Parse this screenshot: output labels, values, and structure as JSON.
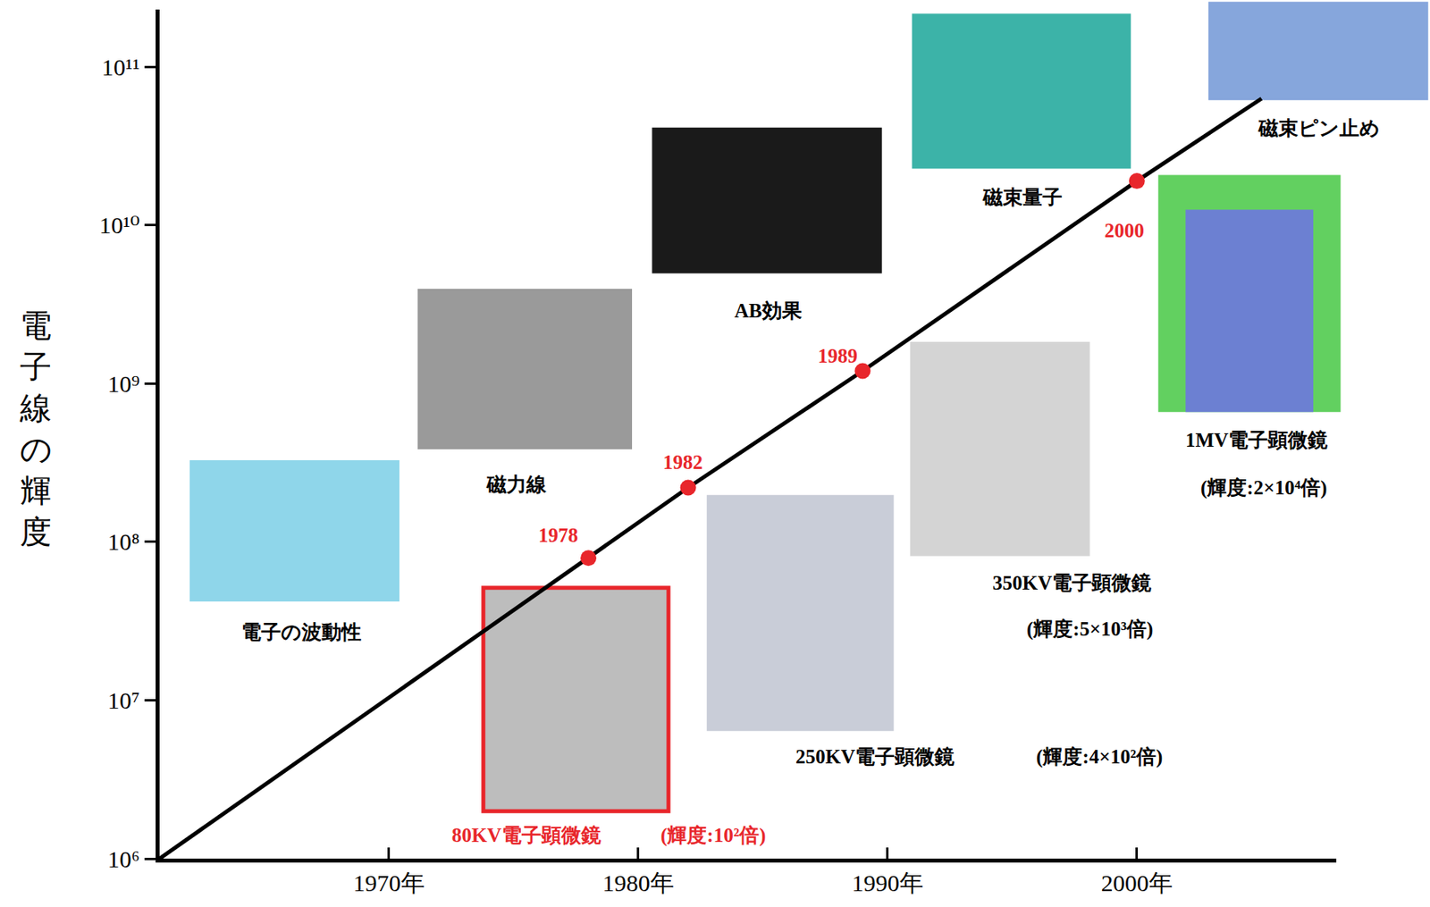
{
  "chart_data": {
    "type": "line",
    "log": "y",
    "grid": false,
    "y_label": "電子線の輝度",
    "xlim": [
      1960.8,
      2008
    ],
    "ylim": [
      1000000,
      230000000000
    ],
    "xticks": [
      {
        "value": 1970,
        "label": "1970年"
      },
      {
        "value": 1980,
        "label": "1980年"
      },
      {
        "value": 1990,
        "label": "1990年"
      },
      {
        "value": 2000,
        "label": "2000年"
      }
    ],
    "yticks": [
      {
        "value": 1000000,
        "label": "10⁶"
      },
      {
        "value": 10000000,
        "label": "10⁷"
      },
      {
        "value": 100000000,
        "label": "10⁸"
      },
      {
        "value": 1000000000,
        "label": "10⁹"
      },
      {
        "value": 10000000000,
        "label": "10¹⁰"
      },
      {
        "value": 100000000000,
        "label": "10¹¹"
      }
    ],
    "series": [
      {
        "type": "line",
        "color": "#000000",
        "line_style": "solid",
        "x": [
          1960.8,
          1978,
          1982,
          1989,
          2000,
          2005
        ],
        "values": [
          1000000,
          79000000,
          220000000,
          1200000000,
          19000000000,
          63000000000
        ]
      },
      {
        "type": "scatter",
        "color": "#e8262b",
        "marker": "circle",
        "x": [
          1978,
          1982,
          1989,
          2000
        ],
        "values": [
          79000000,
          220000000,
          1200000000,
          19000000000
        ]
      }
    ],
    "annotations": [
      {
        "text": "1978",
        "x": 1976.8,
        "y": 110000000,
        "color": "#e8262b"
      },
      {
        "text": "1982",
        "x": 1981.8,
        "y": 320000000,
        "color": "#e8262b"
      },
      {
        "text": "1989",
        "x": 1988.0,
        "y": 1500000000,
        "color": "#e8262b"
      },
      {
        "text": "2000",
        "x": 1999.5,
        "y": 9300000000,
        "color": "#e8262b"
      },
      {
        "text": "電子の波動性",
        "x": 1966.5,
        "y": 27000000,
        "color": "#000000"
      },
      {
        "text": "磁力線",
        "x": 1975.1,
        "y": 230000000,
        "color": "#000000"
      },
      {
        "text": "AB効果",
        "x": 1985.2,
        "y": 2900000000,
        "color": "#000000"
      },
      {
        "text": "磁束量子",
        "x": 1995.4,
        "y": 15000000000,
        "color": "#000000"
      },
      {
        "text": "磁束ピン止め",
        "x": 2007.3,
        "y": 41000000000,
        "color": "#000000"
      },
      {
        "text": "80KV電子顕微鏡",
        "x": 1975.5,
        "y": 1400000,
        "color": "#e8262b"
      },
      {
        "text": "(輝度:10²倍)",
        "x": 1983.0,
        "y": 1400000,
        "color": "#e8262b"
      },
      {
        "text": "250KV電子顕微鏡",
        "x": 1989.5,
        "y": 4400000,
        "color": "#000000"
      },
      {
        "text": "(輝度:4×10²倍)",
        "x": 1998.5,
        "y": 4400000,
        "color": "#000000"
      },
      {
        "text": "350KV電子顕微鏡",
        "x": 1997.4,
        "y": 55000000,
        "color": "#000000"
      },
      {
        "text": "(輝度:5×10³倍)",
        "x": 1998.1,
        "y": 28000000,
        "color": "#000000"
      },
      {
        "text": "1MV電子顕微鏡",
        "x": 2004.8,
        "y": 440000000,
        "color": "#000000"
      },
      {
        "text": "(輝度:2×10⁴倍)",
        "x": 2005.1,
        "y": 220000000,
        "color": "#000000"
      }
    ]
  }
}
